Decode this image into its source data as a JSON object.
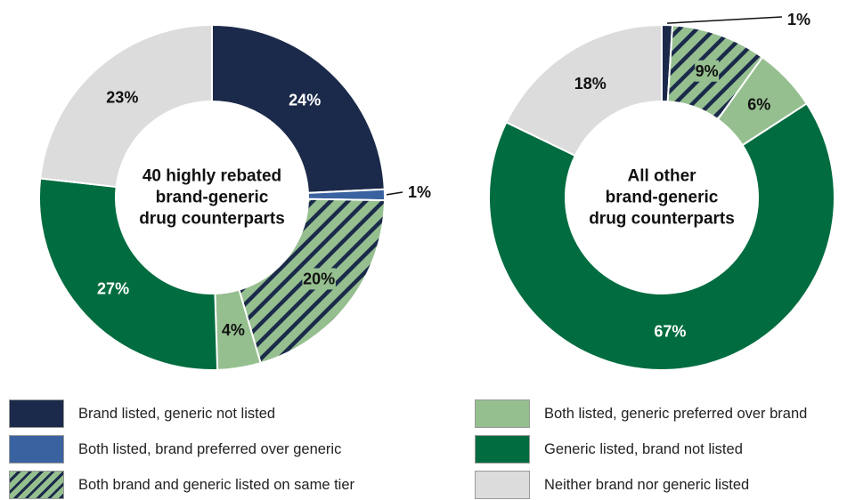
{
  "colors": {
    "brand_only": "#1b2a4a",
    "brand_preferred": "#3a62a0",
    "same_tier_bg": "#95bf8f",
    "same_tier_stripe": "#1b2a4a",
    "generic_preferred": "#95bf8f",
    "generic_only": "#006c3f",
    "neither": "#dcdcdc"
  },
  "chart_data": [
    {
      "type": "pie",
      "center_label": [
        "40 highly rebated",
        "brand-generic",
        "drug counterparts"
      ],
      "slices": [
        {
          "category": "Brand listed, generic not listed",
          "value": 24,
          "label": "24%"
        },
        {
          "category": "Both listed, brand preferred over generic",
          "value": 1,
          "label": "1%"
        },
        {
          "category": "Both brand and generic listed on same tier",
          "value": 20,
          "label": "20%"
        },
        {
          "category": "Both listed, generic preferred over brand",
          "value": 4,
          "label": "4%"
        },
        {
          "category": "Generic listed, brand not listed",
          "value": 27,
          "label": "27%"
        },
        {
          "category": "Neither brand nor generic listed",
          "value": 23,
          "label": "23%"
        }
      ]
    },
    {
      "type": "pie",
      "center_label": [
        "All other",
        "brand-generic",
        "drug counterparts"
      ],
      "slices": [
        {
          "category": "Brand listed, generic not listed",
          "value": 1,
          "label": "1%"
        },
        {
          "category": "Both brand and generic listed on same tier",
          "value": 9,
          "label": "9%"
        },
        {
          "category": "Both listed, generic preferred over brand",
          "value": 6,
          "label": "6%"
        },
        {
          "category": "Generic listed, brand not listed",
          "value": 67,
          "label": "67%"
        },
        {
          "category": "Neither brand nor generic listed",
          "value": 18,
          "label": "18%"
        }
      ]
    }
  ],
  "legend": [
    {
      "label": "Brand listed, generic not listed"
    },
    {
      "label": "Both listed, brand preferred over generic"
    },
    {
      "label": "Both brand and generic listed on same tier"
    },
    {
      "label": "Both listed, generic preferred over brand"
    },
    {
      "label": "Generic listed, brand not listed"
    },
    {
      "label": "Neither brand nor generic listed"
    }
  ]
}
